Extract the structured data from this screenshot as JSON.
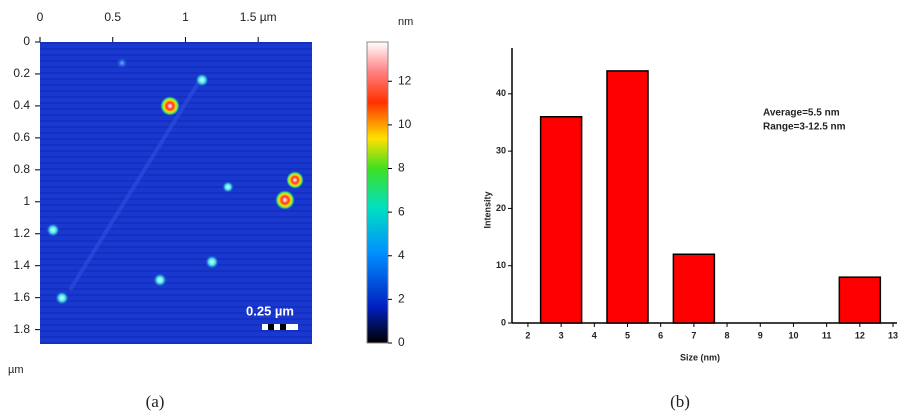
{
  "chart_data": [
    {
      "type": "heatmap",
      "xticks": [
        0,
        0.5,
        1,
        {
          "value": 1.5,
          "label": "1.5 µm"
        }
      ],
      "yticks": [
        0,
        0.2,
        0.4,
        0.6,
        0.8,
        1,
        1.2,
        1.4,
        1.6,
        1.8
      ],
      "xlim": [
        0,
        1.87
      ],
      "ylim": [
        0,
        1.89
      ],
      "y_unit": "µm",
      "colorbar_label": "nm",
      "colorbar_ticks": [
        0,
        2,
        4,
        6,
        8,
        10,
        12
      ],
      "clim": [
        0,
        13.8
      ],
      "scale_bar": "0.25 µm",
      "caption": "(a)"
    },
    {
      "type": "bar",
      "x": [
        3,
        5,
        7,
        12
      ],
      "values": [
        36,
        44,
        12,
        8
      ],
      "color": "#ff0000",
      "xlim": [
        1.52,
        13.12
      ],
      "ylim": [
        0,
        48
      ],
      "xticks": [
        2,
        3,
        4,
        5,
        6,
        7,
        8,
        9,
        10,
        11,
        12,
        13
      ],
      "yticks": [
        0,
        10,
        20,
        30,
        40
      ],
      "x_label": "Size (nm)",
      "y_label": "Intensity",
      "annotations": [
        "Average=5.5 nm",
        "Range=3-12.5 nm"
      ],
      "caption": "(b)"
    }
  ]
}
